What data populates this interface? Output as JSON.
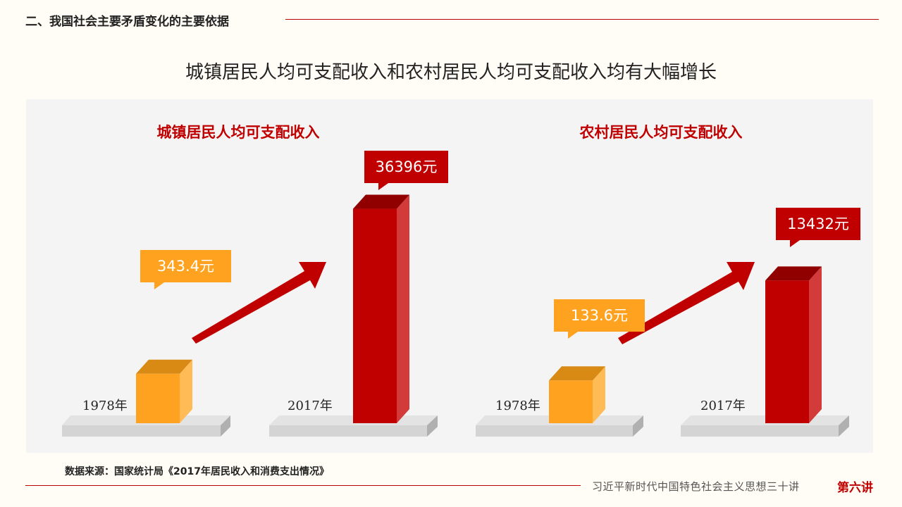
{
  "header": {
    "title": "二、我国社会主要矛盾变化的主要依据"
  },
  "main_title": "城镇居民人均可支配收入和农村居民人均可支配收入均有大幅增长",
  "source": "数据来源：国家统计局《2017年居民收入和消费支出情况》",
  "footer": {
    "text": "习近平新时代中国特色社会主义思想三十讲",
    "badge": "第六讲"
  },
  "colors": {
    "accent": "#c00000",
    "orange": "#ffa21f",
    "red": "#c00000"
  },
  "chart_data": [
    {
      "type": "bar",
      "title": "城镇居民人均可支配收入",
      "categories": [
        "1978年",
        "2017年"
      ],
      "values": [
        343.4,
        36396
      ],
      "value_labels": [
        "343.4元",
        "36396元"
      ],
      "unit": "元"
    },
    {
      "type": "bar",
      "title": "农村居民人均可支配收入",
      "categories": [
        "1978年",
        "2017年"
      ],
      "values": [
        133.6,
        13432
      ],
      "value_labels": [
        "133.6元",
        "13432元"
      ],
      "unit": "元"
    }
  ]
}
